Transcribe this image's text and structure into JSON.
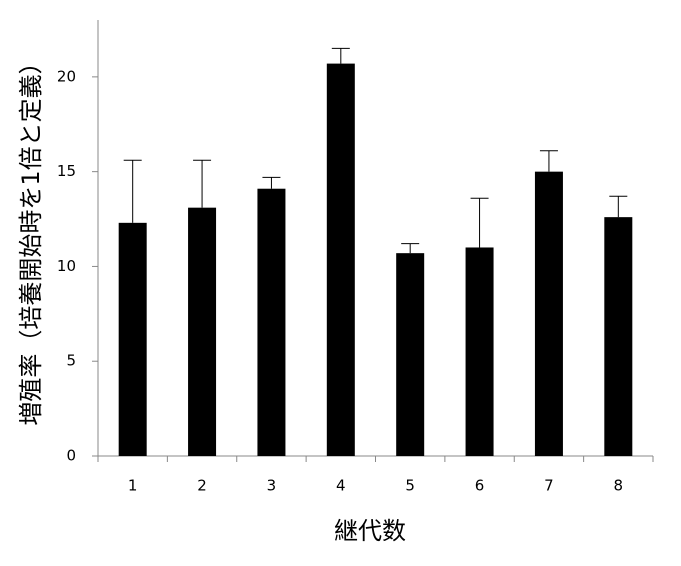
{
  "chart_data": {
    "type": "bar",
    "y_label": "増殖率（培養開始時を1倍と定義）",
    "x_label": "継代数",
    "categories": [
      "1",
      "2",
      "3",
      "4",
      "5",
      "6",
      "7",
      "8"
    ],
    "values": [
      12.3,
      13.1,
      14.1,
      20.7,
      10.7,
      11.0,
      15.0,
      12.6
    ],
    "errors": [
      3.3,
      2.5,
      0.6,
      0.8,
      0.5,
      2.6,
      1.1,
      1.1
    ],
    "color": "#000000",
    "ylim": [
      0,
      23
    ],
    "yticks": [
      0,
      5,
      10,
      15,
      20
    ],
    "grid": false
  }
}
